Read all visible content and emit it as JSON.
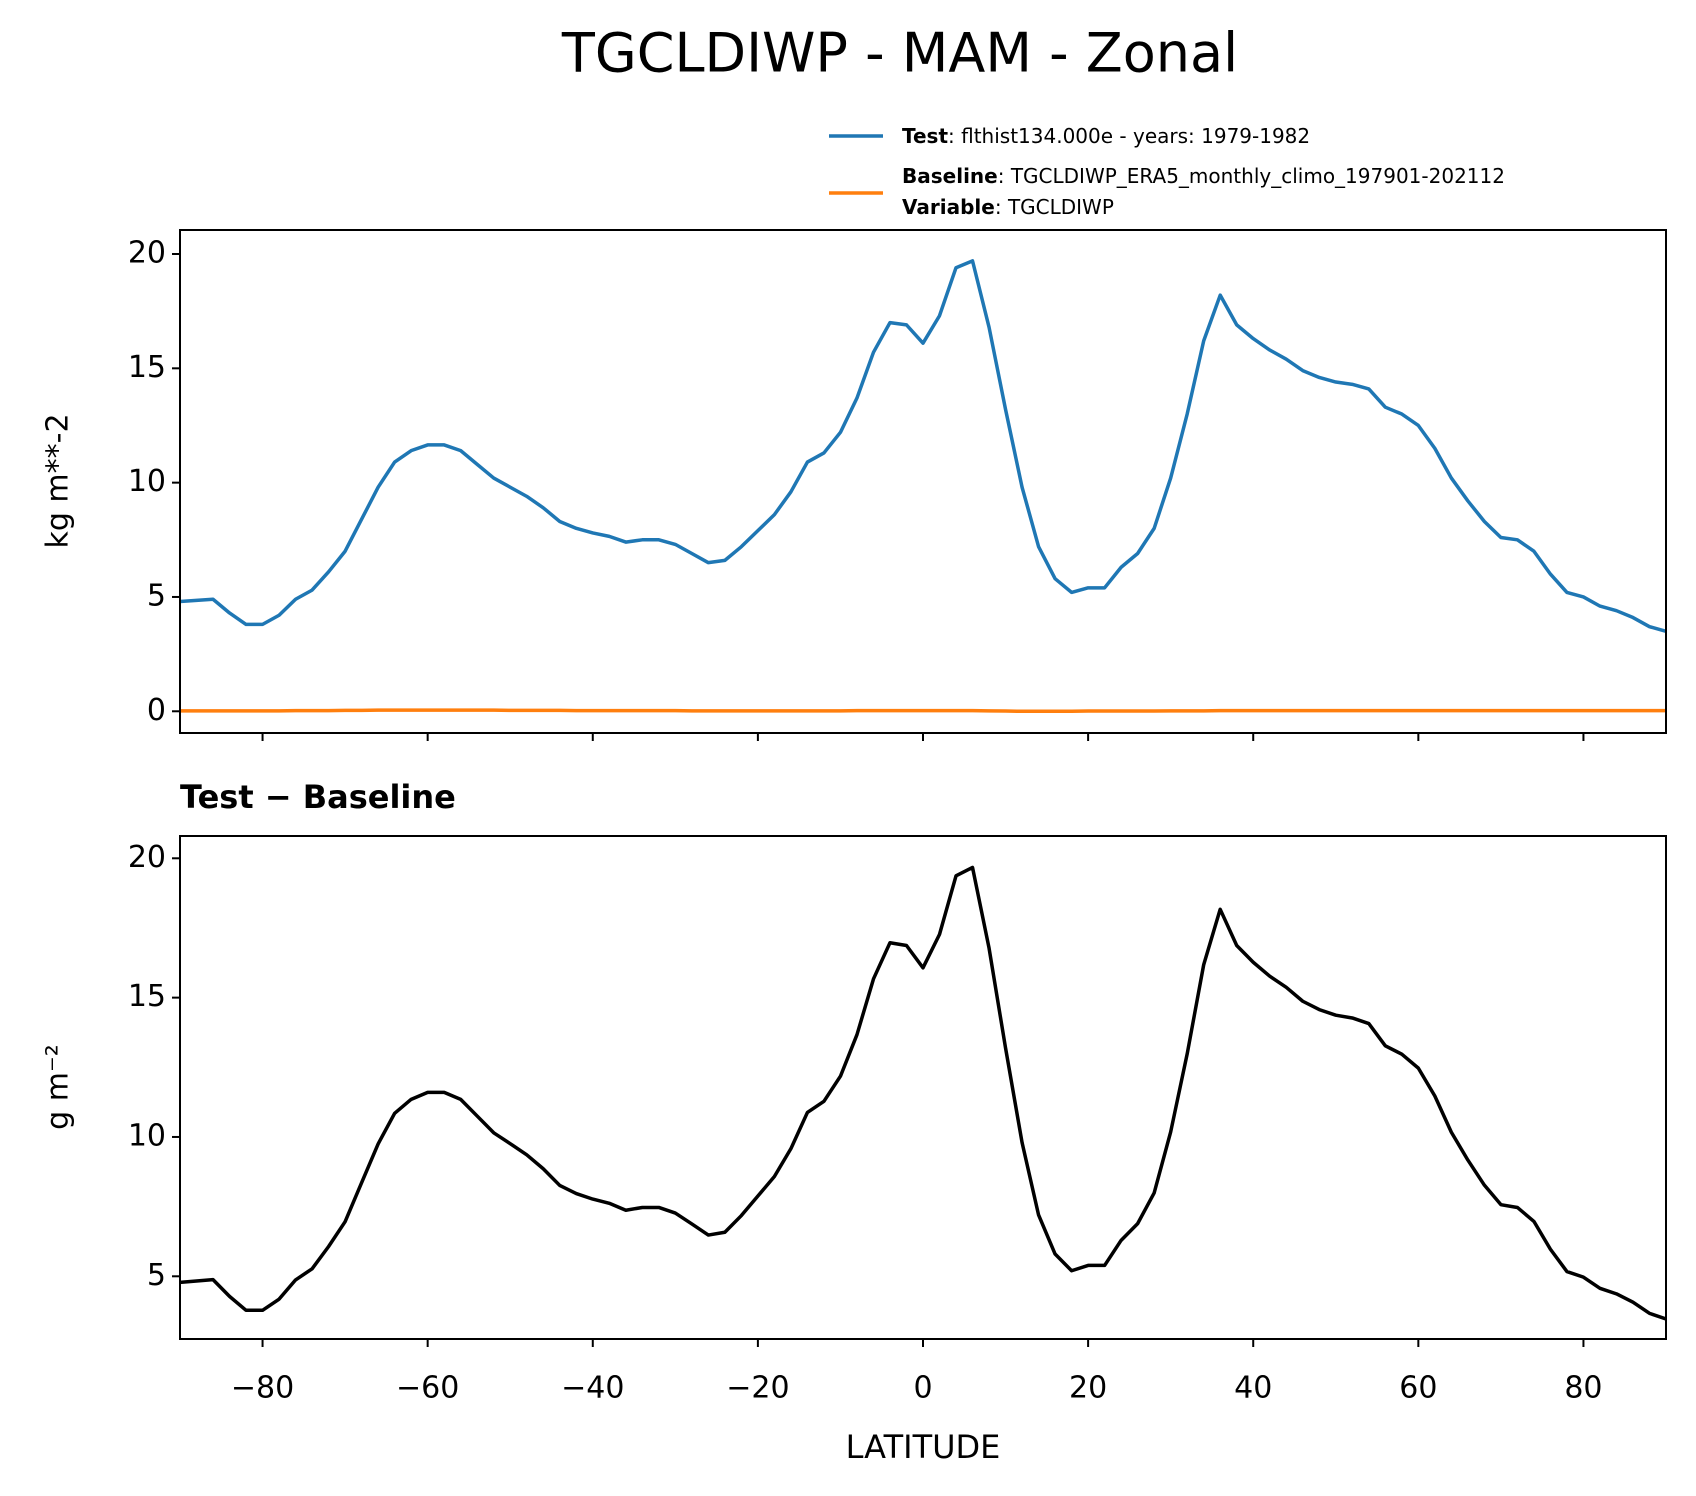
{
  "title": "TGCLDIWP - MAM - Zonal",
  "chart_data": [
    {
      "type": "line",
      "x": [
        -90,
        -88,
        -86,
        -84,
        -82,
        -80,
        -78,
        -76,
        -74,
        -72,
        -70,
        -68,
        -66,
        -64,
        -62,
        -60,
        -58,
        -56,
        -54,
        -52,
        -50,
        -48,
        -46,
        -44,
        -42,
        -40,
        -38,
        -36,
        -34,
        -32,
        -30,
        -28,
        -26,
        -24,
        -22,
        -20,
        -18,
        -16,
        -14,
        -12,
        -10,
        -8,
        -6,
        -4,
        -2,
        0,
        2,
        4,
        6,
        8,
        10,
        12,
        14,
        16,
        18,
        20,
        22,
        24,
        26,
        28,
        30,
        32,
        34,
        36,
        38,
        40,
        42,
        44,
        46,
        48,
        50,
        52,
        54,
        56,
        58,
        60,
        62,
        64,
        66,
        68,
        70,
        72,
        74,
        76,
        78,
        80,
        82,
        84,
        86,
        88,
        90
      ],
      "series": [
        {
          "name": "Test",
          "description": ": flthist134.000e - years: 1979-1982",
          "color": "#1f77b4",
          "values": [
            4.8,
            4.85,
            4.9,
            4.3,
            3.8,
            3.8,
            4.2,
            4.9,
            5.3,
            6.1,
            7.0,
            8.4,
            9.8,
            10.9,
            11.4,
            11.65,
            11.65,
            11.4,
            10.8,
            10.2,
            9.8,
            9.4,
            8.9,
            8.3,
            8.0,
            7.8,
            7.65,
            7.4,
            7.5,
            7.5,
            7.3,
            6.9,
            6.5,
            6.6,
            7.2,
            7.9,
            8.6,
            9.6,
            10.9,
            11.3,
            12.2,
            13.7,
            15.7,
            17.0,
            16.9,
            16.1,
            17.3,
            19.4,
            19.7,
            16.8,
            13.2,
            9.8,
            7.2,
            5.8,
            5.2,
            5.4,
            5.4,
            6.3,
            6.9,
            8.0,
            10.2,
            13.0,
            16.2,
            18.2,
            16.9,
            16.3,
            15.8,
            15.4,
            14.9,
            14.6,
            14.4,
            14.3,
            14.1,
            13.3,
            13.0,
            12.5,
            11.5,
            10.2,
            9.2,
            8.3,
            7.6,
            7.5,
            7.0,
            6.0,
            5.2,
            5.0,
            4.6,
            4.4,
            4.1,
            3.7,
            3.5
          ]
        },
        {
          "name": "Baseline",
          "description": ": TGCLDIWP_ERA5_monthly_climo_197901-202112",
          "extra_name": "Variable",
          "extra_description": ": TGCLDIWP",
          "color": "#ff7f0e",
          "values": [
            0.02,
            0.02,
            0.02,
            0.02,
            0.02,
            0.02,
            0.02,
            0.03,
            0.03,
            0.03,
            0.04,
            0.04,
            0.05,
            0.05,
            0.05,
            0.05,
            0.05,
            0.05,
            0.05,
            0.05,
            0.04,
            0.04,
            0.04,
            0.04,
            0.03,
            0.03,
            0.03,
            0.03,
            0.03,
            0.03,
            0.03,
            0.02,
            0.02,
            0.02,
            0.02,
            0.02,
            0.02,
            0.02,
            0.02,
            0.02,
            0.02,
            0.03,
            0.03,
            0.03,
            0.03,
            0.03,
            0.03,
            0.03,
            0.03,
            0.02,
            0.01,
            0.0,
            0.0,
            0.0,
            0.0,
            0.01,
            0.01,
            0.01,
            0.01,
            0.01,
            0.02,
            0.02,
            0.02,
            0.03,
            0.03,
            0.03,
            0.03,
            0.03,
            0.03,
            0.03,
            0.03,
            0.03,
            0.03,
            0.03,
            0.03,
            0.03,
            0.03,
            0.03,
            0.03,
            0.03,
            0.03,
            0.03,
            0.03,
            0.03,
            0.03,
            0.03,
            0.03,
            0.03,
            0.03,
            0.03,
            0.03
          ]
        }
      ],
      "y_label": "kg m**-2",
      "xlim": [
        -90,
        90
      ],
      "xticks": [
        -80,
        -60,
        -40,
        -20,
        0,
        20,
        40,
        60,
        80
      ],
      "ylim": [
        -0.95,
        21.05
      ],
      "yticks": [
        0,
        5,
        10,
        15,
        20
      ]
    },
    {
      "type": "line",
      "title": "Test − Baseline",
      "x": [
        -90,
        -88,
        -86,
        -84,
        -82,
        -80,
        -78,
        -76,
        -74,
        -72,
        -70,
        -68,
        -66,
        -64,
        -62,
        -60,
        -58,
        -56,
        -54,
        -52,
        -50,
        -48,
        -46,
        -44,
        -42,
        -40,
        -38,
        -36,
        -34,
        -32,
        -30,
        -28,
        -26,
        -24,
        -22,
        -20,
        -18,
        -16,
        -14,
        -12,
        -10,
        -8,
        -6,
        -4,
        -2,
        0,
        2,
        4,
        6,
        8,
        10,
        12,
        14,
        16,
        18,
        20,
        22,
        24,
        26,
        28,
        30,
        32,
        34,
        36,
        38,
        40,
        42,
        44,
        46,
        48,
        50,
        52,
        54,
        56,
        58,
        60,
        62,
        64,
        66,
        68,
        70,
        72,
        74,
        76,
        78,
        80,
        82,
        84,
        86,
        88,
        90
      ],
      "series": [
        {
          "color": "#000000",
          "values": [
            4.78,
            4.83,
            4.88,
            4.28,
            3.78,
            3.78,
            4.18,
            4.87,
            5.27,
            6.07,
            6.96,
            8.36,
            9.75,
            10.85,
            11.35,
            11.6,
            11.6,
            11.35,
            10.75,
            10.15,
            9.76,
            9.36,
            8.86,
            8.26,
            7.97,
            7.77,
            7.62,
            7.37,
            7.47,
            7.47,
            7.27,
            6.88,
            6.48,
            6.58,
            7.18,
            7.88,
            8.58,
            9.58,
            10.88,
            11.28,
            12.18,
            13.67,
            15.67,
            16.97,
            16.87,
            16.07,
            17.27,
            19.37,
            19.67,
            16.78,
            13.19,
            9.8,
            7.2,
            5.8,
            5.2,
            5.39,
            5.39,
            6.29,
            6.89,
            7.99,
            10.18,
            12.98,
            16.18,
            18.17,
            16.87,
            16.27,
            15.77,
            15.37,
            14.87,
            14.57,
            14.37,
            14.27,
            14.07,
            13.27,
            12.97,
            12.47,
            11.47,
            10.17,
            9.17,
            8.27,
            7.57,
            7.47,
            6.97,
            5.97,
            5.17,
            4.97,
            4.57,
            4.37,
            4.07,
            3.67,
            3.47
          ]
        }
      ],
      "x_label": "LATITUDE",
      "y_label": "g m⁻²",
      "xlim": [
        -90,
        90
      ],
      "xticks": [
        {
          "value": -80,
          "label": "−80"
        },
        {
          "value": -60,
          "label": "−60"
        },
        {
          "value": -40,
          "label": "−40"
        },
        {
          "value": -20,
          "label": "−20"
        },
        0,
        20,
        40,
        60,
        80
      ],
      "ylim": [
        2.75,
        20.8
      ],
      "yticks": [
        5,
        10,
        15,
        20
      ]
    }
  ]
}
